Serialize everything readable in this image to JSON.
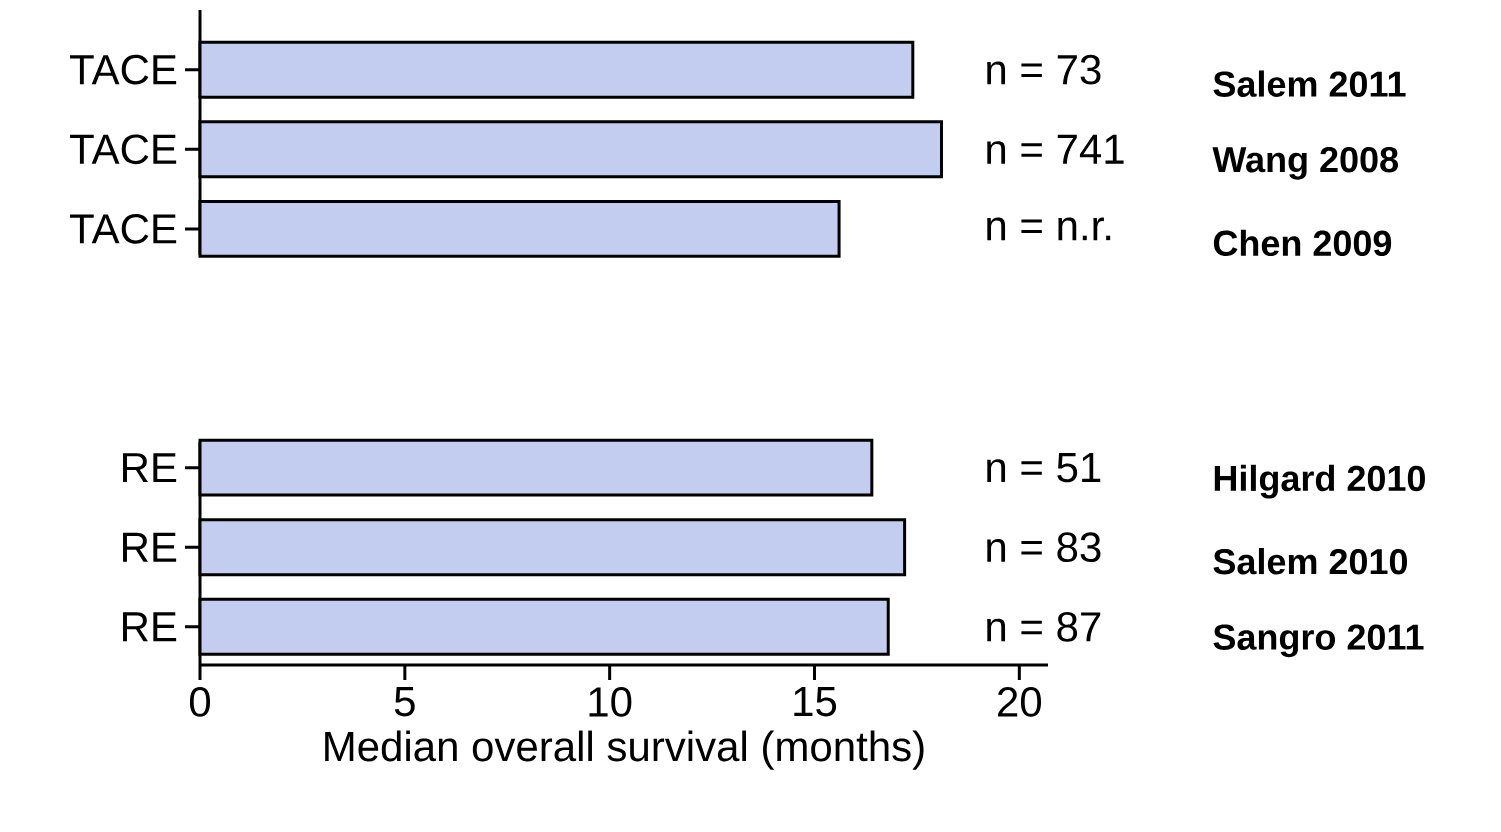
{
  "chart_data": {
    "type": "bar",
    "orientation": "horizontal",
    "categories": [
      "TACE",
      "TACE",
      "TACE",
      null,
      null,
      "RE",
      "RE",
      "RE"
    ],
    "values": [
      17.4,
      18.1,
      15.6,
      null,
      null,
      16.4,
      17.2,
      16.8
    ],
    "color": "#c3cdef",
    "xlim": [
      0,
      20.7
    ],
    "xticks": [
      0,
      5,
      10,
      15,
      20
    ],
    "xlabel": "Median overall survival (months)",
    "annotations": [
      "n = 73",
      "Salem 2011",
      "n = 741",
      "Wang 2008",
      "n = n.r.",
      "Chen 2009",
      "n = 51",
      "Hilgard 2010",
      "n = 83",
      "Salem 2010",
      "n = 87",
      "Sangro 2011"
    ]
  }
}
